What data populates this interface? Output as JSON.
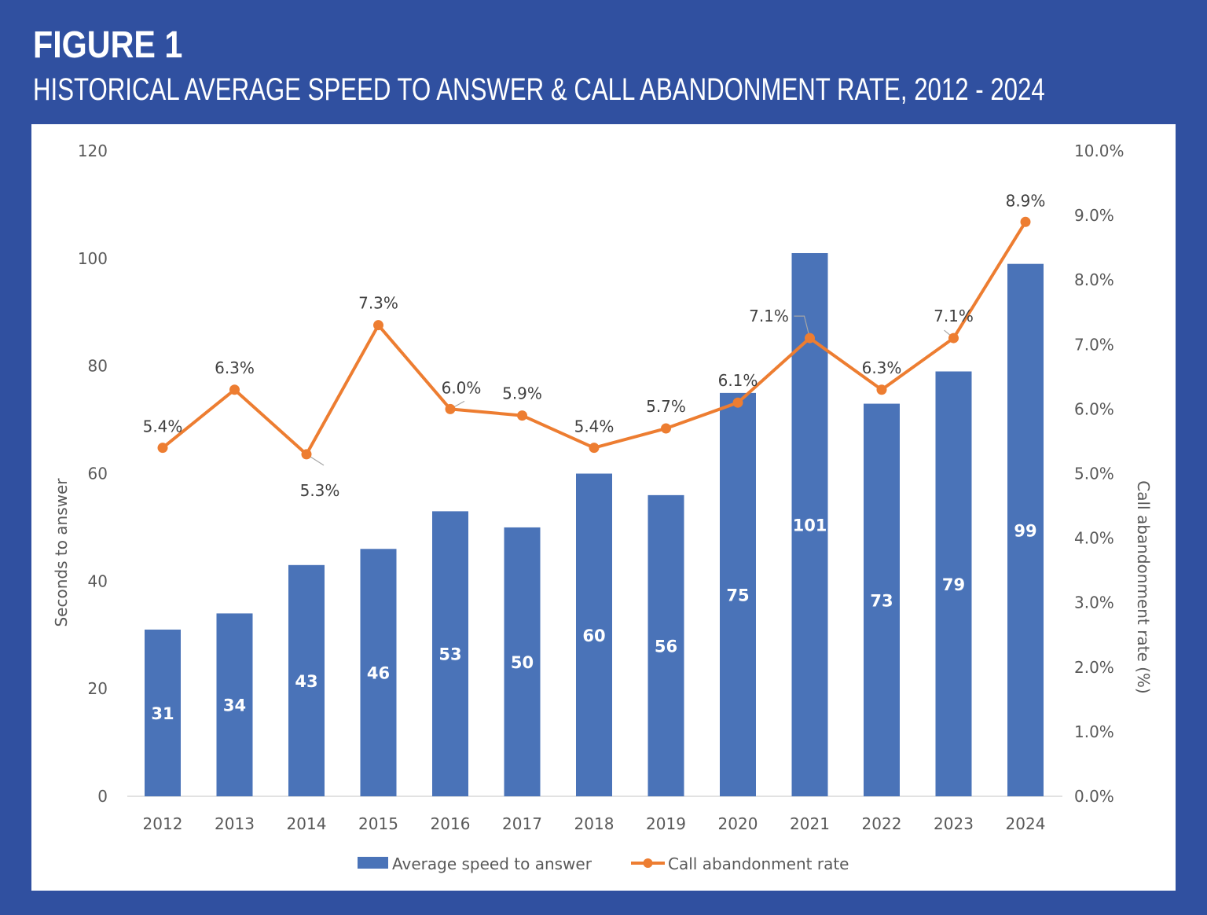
{
  "header": {
    "figure_label": "FIGURE 1",
    "title": "HISTORICAL AVERAGE SPEED TO ANSWER & CALL ABANDONMENT RATE, 2012 - 2024"
  },
  "colors": {
    "background": "#3050a0",
    "bar": "#4a73b8",
    "line": "#ed7d31"
  },
  "chart_data": {
    "type": "bar+line",
    "title": "Historical Average Speed to Answer & Call Abandonment Rate, 2012 - 2024",
    "categories": [
      "2012",
      "2013",
      "2014",
      "2015",
      "2016",
      "2017",
      "2018",
      "2019",
      "2020",
      "2021",
      "2022",
      "2023",
      "2024"
    ],
    "series": [
      {
        "name": "Average speed to answer",
        "type": "bar",
        "axis": "left",
        "values": [
          31,
          34,
          43,
          46,
          53,
          50,
          60,
          56,
          75,
          101,
          73,
          79,
          99
        ],
        "labels": [
          "31",
          "34",
          "43",
          "46",
          "53",
          "50",
          "60",
          "56",
          "75",
          "101",
          "73",
          "79",
          "99"
        ]
      },
      {
        "name": "Call abandonment rate",
        "type": "line",
        "axis": "right",
        "values": [
          5.4,
          6.3,
          5.3,
          7.3,
          6.0,
          5.9,
          5.4,
          5.7,
          6.1,
          7.1,
          6.3,
          7.1,
          8.9
        ],
        "labels": [
          "5.4%",
          "6.3%",
          "5.3%",
          "7.3%",
          "6.0%",
          "5.9%",
          "5.4%",
          "5.7%",
          "6.1%",
          "7.1%",
          "6.3%",
          "7.1%",
          "8.9%"
        ]
      }
    ],
    "ylabel": "Seconds to answer",
    "ylim": [
      0,
      120
    ],
    "yticks": [
      "0",
      "20",
      "40",
      "60",
      "80",
      "100",
      "120"
    ],
    "y2label": "Call abandonment rate (%)",
    "y2lim": [
      0,
      10
    ],
    "y2ticks": [
      "0.0%",
      "1.0%",
      "2.0%",
      "3.0%",
      "4.0%",
      "5.0%",
      "6.0%",
      "7.0%",
      "8.0%",
      "9.0%",
      "10.0%"
    ],
    "grid": false,
    "legend": "bottom-center",
    "legend_entries": [
      "Average speed to answer",
      "Call abandonment rate"
    ]
  }
}
